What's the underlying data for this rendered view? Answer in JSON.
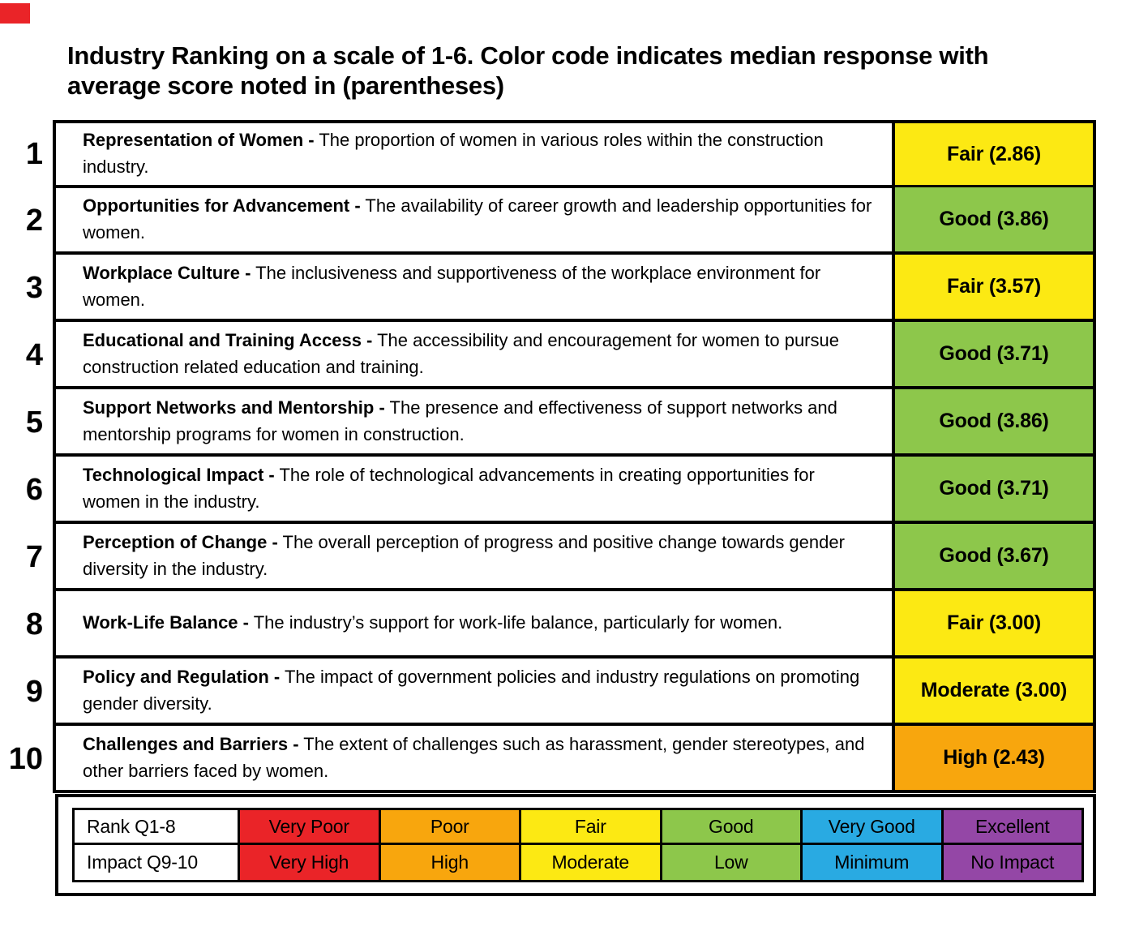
{
  "title": "Industry Ranking on a scale of 1-6. Color code indicates median response with\naverage score noted in (parentheses)",
  "colors": {
    "red": "#ea2428",
    "orange": "#f8a60d",
    "yellow": "#fce913",
    "green": "#8dc74b",
    "blue": "#29aae2",
    "purple": "#9447a6",
    "marker": "#ea2428"
  },
  "rows": [
    {
      "num": "1",
      "heading": "Representation of Women -",
      "body": "The proportion of women in various roles within the construction industry.",
      "score": "Fair (2.86)",
      "color": "yellow"
    },
    {
      "num": "2",
      "heading": "Opportunities for Advancement -",
      "body": "The availability of career growth and leadership opportunities for women.",
      "score": "Good (3.86)",
      "color": "green"
    },
    {
      "num": "3",
      "heading": "Workplace Culture -",
      "body": "The inclusiveness and supportiveness of the workplace environment for women.",
      "score": "Fair (3.57)",
      "color": "yellow"
    },
    {
      "num": "4",
      "heading": "Educational and Training Access -",
      "body": "The accessibility and encouragement for women to pursue construction related education and training.",
      "score": "Good (3.71)",
      "color": "green"
    },
    {
      "num": "5",
      "heading": "Support Networks and Mentorship -",
      "body": "The presence and effectiveness of support networks and mentorship programs for women in construction.",
      "score": "Good (3.86)",
      "color": "green"
    },
    {
      "num": "6",
      "heading": "Technological Impact -",
      "body": "The role of technological advancements in creating opportunities for women in the industry.",
      "score": "Good (3.71)",
      "color": "green"
    },
    {
      "num": "7",
      "heading": "Perception of Change -",
      "body": "The overall perception of progress and positive change towards gender diversity in the industry.",
      "score": "Good (3.67)",
      "color": "green"
    },
    {
      "num": "8",
      "heading": "Work-Life Balance -",
      "body": "The industry’s support for work-life balance, particularly for women.",
      "score": "Fair (3.00)",
      "color": "yellow"
    },
    {
      "num": "9",
      "heading": "Policy and Regulation -",
      "body": "The impact of government policies and industry regulations on promoting gender diversity.",
      "score": "Moderate (3.00)",
      "color": "yellow"
    },
    {
      "num": "10",
      "heading": "Challenges and Barriers -",
      "body": "The extent of challenges such as harassment, gender stereotypes, and other barriers faced by women.",
      "score": "High (2.43)",
      "color": "orange"
    }
  ],
  "legend": {
    "rows": [
      {
        "label": "Rank Q1-8",
        "cells": [
          {
            "text": "Very Poor",
            "color": "red"
          },
          {
            "text": "Poor",
            "color": "orange"
          },
          {
            "text": "Fair",
            "color": "yellow"
          },
          {
            "text": "Good",
            "color": "green"
          },
          {
            "text": "Very Good",
            "color": "blue"
          },
          {
            "text": "Excellent",
            "color": "purple"
          }
        ]
      },
      {
        "label": "Impact Q9-10",
        "cells": [
          {
            "text": "Very High",
            "color": "red"
          },
          {
            "text": "High",
            "color": "orange"
          },
          {
            "text": "Moderate",
            "color": "yellow"
          },
          {
            "text": "Low",
            "color": "green"
          },
          {
            "text": "Minimum",
            "color": "blue"
          },
          {
            "text": "No Impact",
            "color": "purple"
          }
        ]
      }
    ]
  },
  "chart_data": {
    "type": "table",
    "title": "Industry Ranking on a scale of 1-6. Color code indicates median response with average score noted in (parentheses)",
    "scale_range": [
      1,
      6
    ],
    "categories": [
      "Representation of Women",
      "Opportunities for Advancement",
      "Workplace Culture",
      "Educational and Training Access",
      "Support Networks and Mentorship",
      "Technological Impact",
      "Perception of Change",
      "Work-Life Balance",
      "Policy and Regulation",
      "Challenges and Barriers"
    ],
    "series": [
      {
        "name": "Average score",
        "values": [
          2.86,
          3.86,
          3.57,
          3.71,
          3.86,
          3.71,
          3.67,
          3.0,
          3.0,
          2.43
        ]
      },
      {
        "name": "Median response",
        "values": [
          "Fair",
          "Good",
          "Fair",
          "Good",
          "Good",
          "Good",
          "Good",
          "Fair",
          "Moderate",
          "High"
        ]
      }
    ],
    "legend_scale_q1_8": [
      "Very Poor",
      "Poor",
      "Fair",
      "Good",
      "Very Good",
      "Excellent"
    ],
    "legend_scale_q9_10": [
      "Very High",
      "High",
      "Moderate",
      "Low",
      "Minimum",
      "No Impact"
    ]
  }
}
